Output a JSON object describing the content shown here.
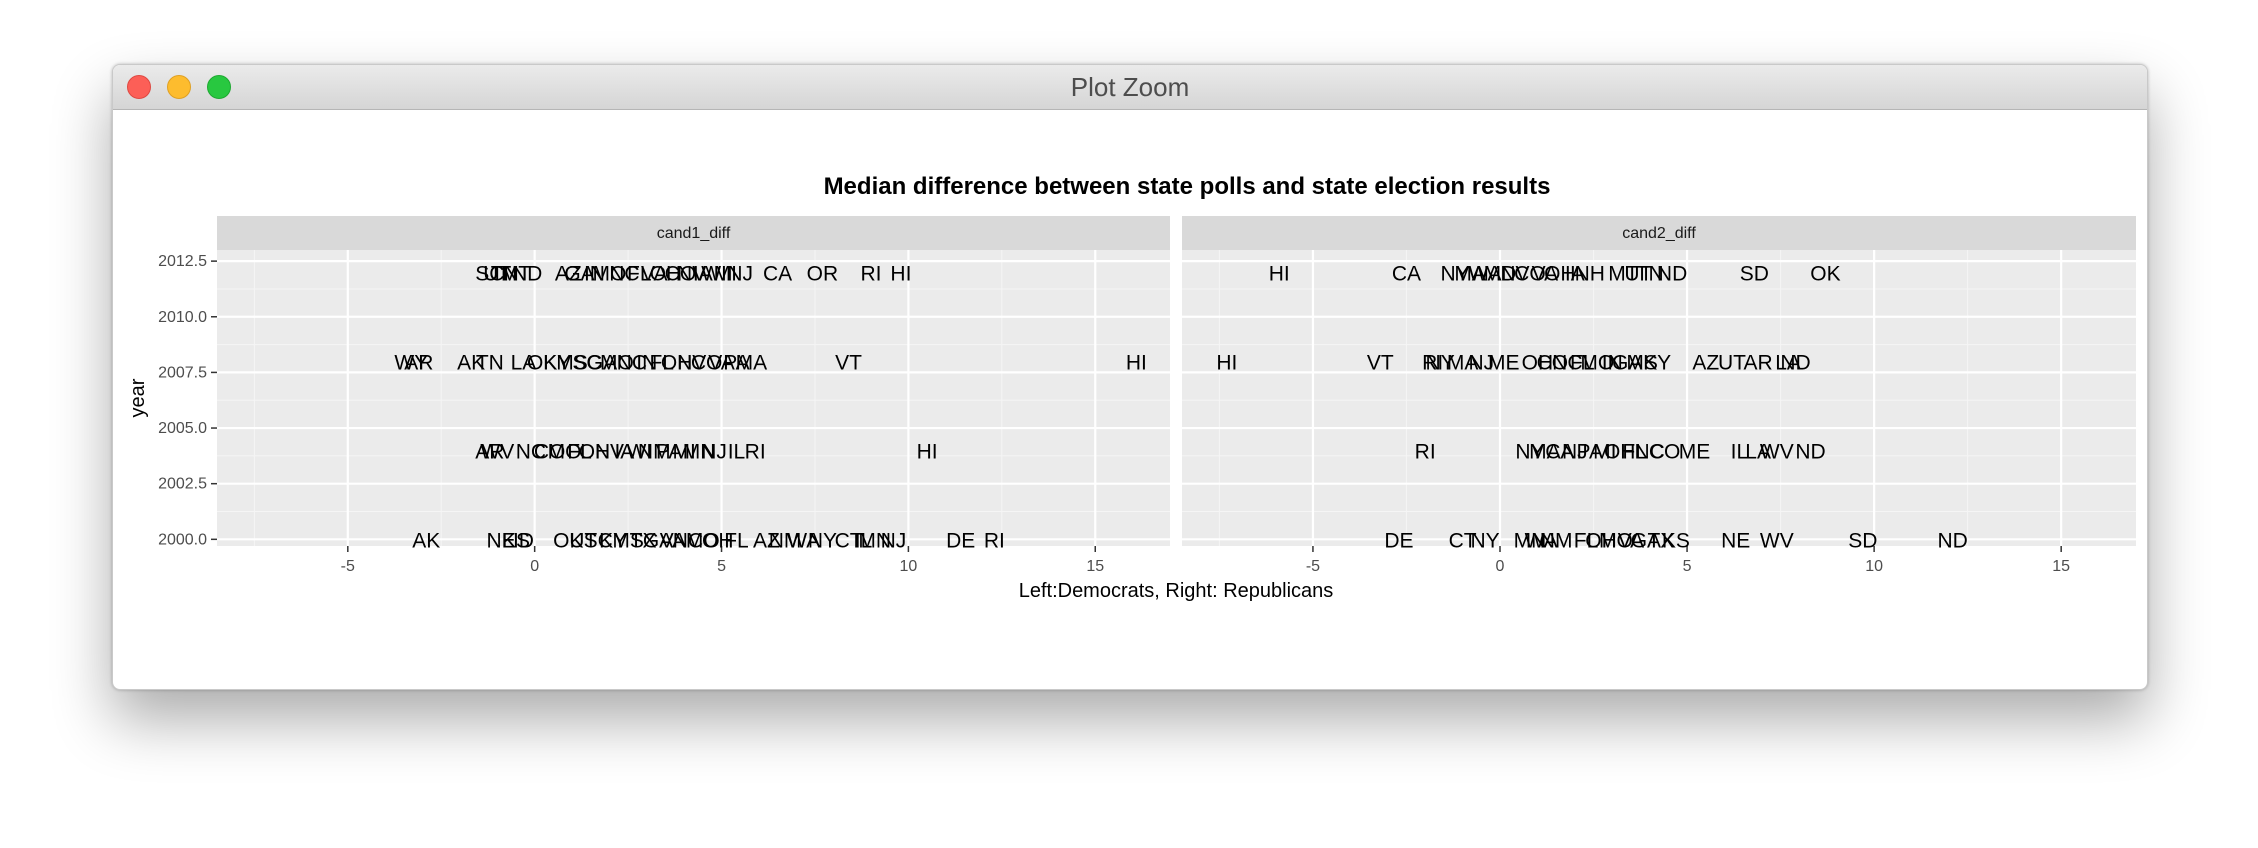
{
  "window": {
    "title": "Plot Zoom",
    "buttons": [
      "close-button",
      "minimize-button",
      "zoom-button"
    ]
  },
  "chart_data": {
    "type": "scatter",
    "title": "Median difference between state polls and state election results",
    "xlabel": "Left:Democrats, Right: Republicans",
    "ylabel": "year",
    "xlim": [
      -8.5,
      17
    ],
    "ylim": [
      1999.7,
      2013
    ],
    "x_ticks": [
      -5,
      0,
      5,
      10,
      15
    ],
    "y_ticks": [
      2000.0,
      2002.5,
      2005.0,
      2007.5,
      2010.0,
      2012.5
    ],
    "y_tick_labels": [
      "2000.0",
      "2002.5",
      "2005.0",
      "2007.5",
      "2010.0",
      "2012.5"
    ],
    "x_tick_labels": [
      "-5",
      "0",
      "5",
      "10",
      "15"
    ],
    "grid": true,
    "colors": {
      "panel_bg": "#ebebeb",
      "strip_bg": "#d9d9d9",
      "grid_major": "#ffffff",
      "text": "#000000",
      "axis_text": "#4d4d4d"
    },
    "panels": [
      {
        "strip": "cand1_diff",
        "points": [
          {
            "label": "SC",
            "x": -1.2,
            "y": 2012
          },
          {
            "label": "UT",
            "x": -1.0,
            "y": 2012
          },
          {
            "label": "TN",
            "x": -0.8,
            "y": 2012
          },
          {
            "label": "MT",
            "x": -0.5,
            "y": 2012
          },
          {
            "label": "ND",
            "x": -0.2,
            "y": 2012
          },
          {
            "label": "AZ",
            "x": 0.9,
            "y": 2012
          },
          {
            "label": "GA",
            "x": 1.2,
            "y": 2012
          },
          {
            "label": "IN",
            "x": 1.6,
            "y": 2012
          },
          {
            "label": "MO",
            "x": 2.0,
            "y": 2012
          },
          {
            "label": "NC",
            "x": 2.4,
            "y": 2012
          },
          {
            "label": "FL",
            "x": 2.8,
            "y": 2012
          },
          {
            "label": "VA",
            "x": 3.2,
            "y": 2012
          },
          {
            "label": "OH",
            "x": 3.5,
            "y": 2012
          },
          {
            "label": "CO",
            "x": 3.9,
            "y": 2012
          },
          {
            "label": "NV",
            "x": 4.2,
            "y": 2012
          },
          {
            "label": "IA",
            "x": 4.5,
            "y": 2012
          },
          {
            "label": "WI",
            "x": 4.8,
            "y": 2012
          },
          {
            "label": "MI",
            "x": 5.1,
            "y": 2012
          },
          {
            "label": "NJ",
            "x": 5.5,
            "y": 2012
          },
          {
            "label": "CA",
            "x": 6.5,
            "y": 2012
          },
          {
            "label": "OR",
            "x": 7.7,
            "y": 2012
          },
          {
            "label": "RI",
            "x": 9.0,
            "y": 2012
          },
          {
            "label": "HI",
            "x": 9.8,
            "y": 2012
          },
          {
            "label": "WY",
            "x": -3.3,
            "y": 2008
          },
          {
            "label": "AR",
            "x": -3.1,
            "y": 2008
          },
          {
            "label": "AK",
            "x": -1.7,
            "y": 2008
          },
          {
            "label": "TN",
            "x": -1.2,
            "y": 2008
          },
          {
            "label": "LA",
            "x": -0.3,
            "y": 2008
          },
          {
            "label": "OK",
            "x": 0.2,
            "y": 2008
          },
          {
            "label": "KY",
            "x": 0.6,
            "y": 2008
          },
          {
            "label": "MS",
            "x": 1.0,
            "y": 2008
          },
          {
            "label": "SC",
            "x": 1.4,
            "y": 2008
          },
          {
            "label": "GA",
            "x": 1.8,
            "y": 2008
          },
          {
            "label": "MO",
            "x": 2.2,
            "y": 2008
          },
          {
            "label": "NC",
            "x": 2.6,
            "y": 2008
          },
          {
            "label": "IN",
            "x": 3.0,
            "y": 2008
          },
          {
            "label": "FL",
            "x": 3.4,
            "y": 2008
          },
          {
            "label": "OH",
            "x": 3.8,
            "y": 2008
          },
          {
            "label": "NV",
            "x": 4.2,
            "y": 2008
          },
          {
            "label": "CO",
            "x": 4.6,
            "y": 2008
          },
          {
            "label": "VA",
            "x": 5.0,
            "y": 2008
          },
          {
            "label": "PA",
            "x": 5.4,
            "y": 2008
          },
          {
            "label": "MA",
            "x": 5.8,
            "y": 2008
          },
          {
            "label": "VT",
            "x": 8.4,
            "y": 2008
          },
          {
            "label": "HI",
            "x": 16.1,
            "y": 2008
          },
          {
            "label": "AR",
            "x": -1.2,
            "y": 2004
          },
          {
            "label": "WV",
            "x": -1.0,
            "y": 2004
          },
          {
            "label": "NC",
            "x": -0.1,
            "y": 2004
          },
          {
            "label": "CO",
            "x": 0.4,
            "y": 2004
          },
          {
            "label": "MO",
            "x": 0.8,
            "y": 2004
          },
          {
            "label": "FL",
            "x": 1.2,
            "y": 2004
          },
          {
            "label": "OH",
            "x": 1.6,
            "y": 2004
          },
          {
            "label": "NV",
            "x": 2.0,
            "y": 2004
          },
          {
            "label": "IA",
            "x": 2.4,
            "y": 2004
          },
          {
            "label": "WI",
            "x": 2.8,
            "y": 2004
          },
          {
            "label": "NM",
            "x": 3.2,
            "y": 2004
          },
          {
            "label": "PA",
            "x": 3.6,
            "y": 2004
          },
          {
            "label": "MI",
            "x": 4.0,
            "y": 2004
          },
          {
            "label": "MN",
            "x": 4.4,
            "y": 2004
          },
          {
            "label": "NJ",
            "x": 4.8,
            "y": 2004
          },
          {
            "label": "IL",
            "x": 5.4,
            "y": 2004
          },
          {
            "label": "RI",
            "x": 5.9,
            "y": 2004
          },
          {
            "label": "HI",
            "x": 10.5,
            "y": 2004
          },
          {
            "label": "AK",
            "x": -2.9,
            "y": 2000
          },
          {
            "label": "NE",
            "x": -0.9,
            "y": 2000
          },
          {
            "label": "KS",
            "x": -0.5,
            "y": 2000
          },
          {
            "label": "ID",
            "x": -0.3,
            "y": 2000
          },
          {
            "label": "OK",
            "x": 0.9,
            "y": 2000
          },
          {
            "label": "UT",
            "x": 1.3,
            "y": 2000
          },
          {
            "label": "SC",
            "x": 1.7,
            "y": 2000
          },
          {
            "label": "KY",
            "x": 2.1,
            "y": 2000
          },
          {
            "label": "MS",
            "x": 2.5,
            "y": 2000
          },
          {
            "label": "TX",
            "x": 2.9,
            "y": 2000
          },
          {
            "label": "GA",
            "x": 3.3,
            "y": 2000
          },
          {
            "label": "VA",
            "x": 3.7,
            "y": 2000
          },
          {
            "label": "NC",
            "x": 4.1,
            "y": 2000
          },
          {
            "label": "MO",
            "x": 4.5,
            "y": 2000
          },
          {
            "label": "OH",
            "x": 4.9,
            "y": 2000
          },
          {
            "label": "FL",
            "x": 5.4,
            "y": 2000
          },
          {
            "label": "AZ",
            "x": 6.2,
            "y": 2000
          },
          {
            "label": "NM",
            "x": 6.7,
            "y": 2000
          },
          {
            "label": "WA",
            "x": 7.2,
            "y": 2000
          },
          {
            "label": "NY",
            "x": 7.7,
            "y": 2000
          },
          {
            "label": "CT",
            "x": 8.4,
            "y": 2000
          },
          {
            "label": "IL",
            "x": 8.8,
            "y": 2000
          },
          {
            "label": "MN",
            "x": 9.1,
            "y": 2000
          },
          {
            "label": "NJ",
            "x": 9.6,
            "y": 2000
          },
          {
            "label": "DE",
            "x": 11.4,
            "y": 2000
          },
          {
            "label": "RI",
            "x": 12.3,
            "y": 2000
          }
        ]
      },
      {
        "strip": "cand2_diff",
        "points": [
          {
            "label": "HI",
            "x": -5.9,
            "y": 2012
          },
          {
            "label": "CA",
            "x": -2.5,
            "y": 2012
          },
          {
            "label": "NY",
            "x": -1.2,
            "y": 2012
          },
          {
            "label": "MA",
            "x": -0.8,
            "y": 2012
          },
          {
            "label": "WA",
            "x": -0.4,
            "y": 2012
          },
          {
            "label": "MD",
            "x": 0.0,
            "y": 2012
          },
          {
            "label": "NV",
            "x": 0.4,
            "y": 2012
          },
          {
            "label": "CO",
            "x": 0.8,
            "y": 2012
          },
          {
            "label": "VA",
            "x": 1.2,
            "y": 2012
          },
          {
            "label": "OH",
            "x": 1.6,
            "y": 2012
          },
          {
            "label": "IA",
            "x": 2.0,
            "y": 2012
          },
          {
            "label": "NH",
            "x": 2.4,
            "y": 2012
          },
          {
            "label": "MT",
            "x": 3.3,
            "y": 2012
          },
          {
            "label": "UT",
            "x": 3.7,
            "y": 2012
          },
          {
            "label": "TN",
            "x": 4.0,
            "y": 2012
          },
          {
            "label": "ND",
            "x": 4.6,
            "y": 2012
          },
          {
            "label": "SD",
            "x": 6.8,
            "y": 2012
          },
          {
            "label": "OK",
            "x": 8.7,
            "y": 2012
          },
          {
            "label": "HI",
            "x": -7.3,
            "y": 2008
          },
          {
            "label": "VT",
            "x": -3.2,
            "y": 2008
          },
          {
            "label": "RI",
            "x": -1.8,
            "y": 2008
          },
          {
            "label": "NY",
            "x": -1.6,
            "y": 2008
          },
          {
            "label": "MA",
            "x": -1.0,
            "y": 2008
          },
          {
            "label": "NJ",
            "x": -0.5,
            "y": 2008
          },
          {
            "label": "ME",
            "x": 0.1,
            "y": 2008
          },
          {
            "label": "OH",
            "x": 1.0,
            "y": 2008
          },
          {
            "label": "CO",
            "x": 1.4,
            "y": 2008
          },
          {
            "label": "NC",
            "x": 1.8,
            "y": 2008
          },
          {
            "label": "FL",
            "x": 2.2,
            "y": 2008
          },
          {
            "label": "MO",
            "x": 2.6,
            "y": 2008
          },
          {
            "label": "IN",
            "x": 3.0,
            "y": 2008
          },
          {
            "label": "GA",
            "x": 3.4,
            "y": 2008
          },
          {
            "label": "MS",
            "x": 3.8,
            "y": 2008
          },
          {
            "label": "KY",
            "x": 4.2,
            "y": 2008
          },
          {
            "label": "AZ",
            "x": 5.5,
            "y": 2008
          },
          {
            "label": "UT",
            "x": 6.2,
            "y": 2008
          },
          {
            "label": "AR",
            "x": 6.9,
            "y": 2008
          },
          {
            "label": "LA",
            "x": 7.7,
            "y": 2008
          },
          {
            "label": "ND",
            "x": 7.9,
            "y": 2008
          },
          {
            "label": "RI",
            "x": -2.0,
            "y": 2004
          },
          {
            "label": "NY",
            "x": 0.8,
            "y": 2004
          },
          {
            "label": "MA",
            "x": 1.2,
            "y": 2004
          },
          {
            "label": "CA",
            "x": 1.6,
            "y": 2004
          },
          {
            "label": "NJ",
            "x": 2.0,
            "y": 2004
          },
          {
            "label": "PA",
            "x": 2.4,
            "y": 2004
          },
          {
            "label": "MI",
            "x": 2.8,
            "y": 2004
          },
          {
            "label": "OH",
            "x": 3.2,
            "y": 2004
          },
          {
            "label": "FL",
            "x": 3.6,
            "y": 2004
          },
          {
            "label": "NC",
            "x": 4.0,
            "y": 2004
          },
          {
            "label": "CO",
            "x": 4.4,
            "y": 2004
          },
          {
            "label": "ME",
            "x": 5.2,
            "y": 2004
          },
          {
            "label": "IL",
            "x": 6.4,
            "y": 2004
          },
          {
            "label": "LA",
            "x": 6.9,
            "y": 2004
          },
          {
            "label": "WV",
            "x": 7.4,
            "y": 2004
          },
          {
            "label": "ND",
            "x": 8.3,
            "y": 2004
          },
          {
            "label": "DE",
            "x": -2.7,
            "y": 2000
          },
          {
            "label": "CT",
            "x": -1.0,
            "y": 2000
          },
          {
            "label": "NY",
            "x": -0.4,
            "y": 2000
          },
          {
            "label": "MN",
            "x": 0.8,
            "y": 2000
          },
          {
            "label": "WA",
            "x": 1.1,
            "y": 2000
          },
          {
            "label": "NM",
            "x": 1.5,
            "y": 2000
          },
          {
            "label": "FL",
            "x": 2.3,
            "y": 2000
          },
          {
            "label": "OH",
            "x": 2.7,
            "y": 2000
          },
          {
            "label": "MO",
            "x": 3.1,
            "y": 2000
          },
          {
            "label": "VA",
            "x": 3.5,
            "y": 2000
          },
          {
            "label": "GA",
            "x": 3.9,
            "y": 2000
          },
          {
            "label": "TX",
            "x": 4.3,
            "y": 2000
          },
          {
            "label": "KS",
            "x": 4.7,
            "y": 2000
          },
          {
            "label": "NE",
            "x": 6.3,
            "y": 2000
          },
          {
            "label": "WV",
            "x": 7.4,
            "y": 2000
          },
          {
            "label": "SD",
            "x": 9.7,
            "y": 2000
          },
          {
            "label": "ND",
            "x": 12.1,
            "y": 2000
          }
        ]
      }
    ]
  }
}
